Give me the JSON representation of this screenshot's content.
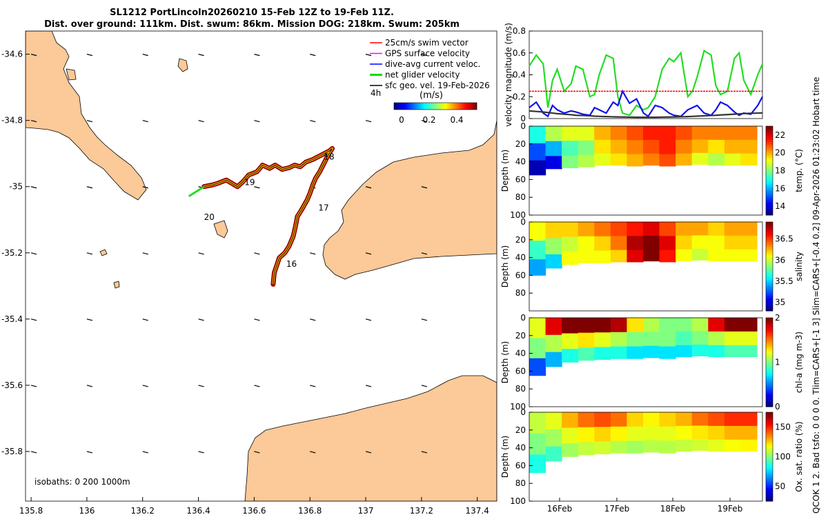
{
  "title": {
    "line1": "SL1212 PortLincoln20260210 15-Feb 12Z to 19-Feb 11Z.",
    "line2": "Dist. over ground: 111km. Dist. swum: 86km. Mission DOG: 218km. Swum: 205km"
  },
  "side_text": {
    "right1": "Hobart time",
    "right2": "09-Apr-2026 01:23:02",
    "right3": "Tlim=CARS+[-1 3] Slim=CARS+[-0.4 0.2]",
    "right4": "QCOK 1  2. Bad tsfo: 0  0  0  0.",
    "timestamp_full": "QCOK 1  2. Bad tsfo: 0  0  0  0. Tlim=CARS+[-1 3] Slim=CARS+[-0.4 0.2] 09-Apr-2026 01:23:02 Hobart time"
  },
  "map": {
    "x_ticks": [
      "135.8",
      "136",
      "136.2",
      "136.4",
      "136.6",
      "136.8",
      "137",
      "137.2",
      "137.4"
    ],
    "y_ticks": [
      "-34.6",
      "-34.8",
      "-35",
      "-35.2",
      "-35.4",
      "-35.6",
      "-35.8"
    ],
    "x_range": [
      135.78,
      137.47
    ],
    "y_range": [
      -35.95,
      -34.53
    ],
    "isobaths": "isobaths: 0   200  1000m",
    "day_labels": [
      {
        "text": "16",
        "lon": 136.715,
        "lat": -35.242
      },
      {
        "text": "17",
        "lon": 136.83,
        "lat": -35.072
      },
      {
        "text": "18",
        "lon": 136.85,
        "lat": -34.918
      },
      {
        "text": "19",
        "lon": 136.565,
        "lat": -34.995
      },
      {
        "text": "20",
        "lon": 136.42,
        "lat": -35.1
      }
    ],
    "track": [
      [
        136.668,
        -35.295
      ],
      [
        136.672,
        -35.26
      ],
      [
        136.69,
        -35.215
      ],
      [
        136.71,
        -35.2
      ],
      [
        136.725,
        -35.18
      ],
      [
        136.74,
        -35.15
      ],
      [
        136.748,
        -35.12
      ],
      [
        136.755,
        -35.09
      ],
      [
        136.77,
        -35.07
      ],
      [
        136.78,
        -35.055
      ],
      [
        136.79,
        -35.04
      ],
      [
        136.8,
        -35.02
      ],
      [
        136.81,
        -34.995
      ],
      [
        136.82,
        -34.975
      ],
      [
        136.835,
        -34.955
      ],
      [
        136.85,
        -34.93
      ],
      [
        136.865,
        -34.905
      ],
      [
        136.88,
        -34.885
      ],
      [
        136.87,
        -34.892
      ],
      [
        136.84,
        -34.905
      ],
      [
        136.81,
        -34.918
      ],
      [
        136.785,
        -34.926
      ],
      [
        136.765,
        -34.94
      ],
      [
        136.745,
        -34.935
      ],
      [
        136.725,
        -34.943
      ],
      [
        136.7,
        -34.948
      ],
      [
        136.675,
        -34.935
      ],
      [
        136.655,
        -34.945
      ],
      [
        136.63,
        -34.935
      ],
      [
        136.61,
        -34.955
      ],
      [
        136.58,
        -34.965
      ],
      [
        136.56,
        -34.985
      ],
      [
        136.54,
        -35.0
      ],
      [
        136.52,
        -34.99
      ],
      [
        136.5,
        -34.98
      ],
      [
        136.485,
        -34.985
      ],
      [
        136.47,
        -34.99
      ],
      [
        136.45,
        -34.995
      ],
      [
        136.42,
        -35.0
      ]
    ],
    "legend": {
      "items": [
        {
          "label": "25cm/s swim vector",
          "color": "#ff0000"
        },
        {
          "label": "GPS surface velocity",
          "color": "#ff00ff"
        },
        {
          "label": "dive-avg current veloc.",
          "color": "#0000ff"
        },
        {
          "label": "net glider velocity",
          "color": "#00dd00"
        },
        {
          "label": "sfc geo. vel. 19-Feb-2026",
          "color": "#000000"
        }
      ],
      "time_label": "4h",
      "colorbar_title": "(m/s)",
      "colorbar_ticks": [
        "0",
        "0.2",
        "0.4"
      ]
    }
  },
  "chart_data": [
    {
      "type": "line",
      "title": "",
      "ylabel": "velocity magnitude (m/s)",
      "ylim": [
        0,
        0.8
      ],
      "y_ticks": [
        "0",
        "0.2",
        "0.4",
        "0.6",
        "0.8"
      ],
      "x": [
        0,
        0.03,
        0.06,
        0.08,
        0.1,
        0.12,
        0.15,
        0.18,
        0.2,
        0.23,
        0.26,
        0.28,
        0.3,
        0.33,
        0.36,
        0.38,
        0.4,
        0.43,
        0.46,
        0.49,
        0.51,
        0.54,
        0.57,
        0.6,
        0.62,
        0.65,
        0.68,
        0.7,
        0.72,
        0.75,
        0.78,
        0.8,
        0.82,
        0.85,
        0.88,
        0.9,
        0.92,
        0.95,
        0.98,
        1.0
      ],
      "series": [
        {
          "name": "net glider velocity",
          "color": "#22dd22",
          "values": [
            0.48,
            0.58,
            0.5,
            0.1,
            0.35,
            0.45,
            0.25,
            0.32,
            0.48,
            0.45,
            0.2,
            0.22,
            0.4,
            0.58,
            0.55,
            0.2,
            0.05,
            0.03,
            0.12,
            0.08,
            0.1,
            0.2,
            0.45,
            0.55,
            0.52,
            0.6,
            0.2,
            0.25,
            0.38,
            0.62,
            0.58,
            0.3,
            0.22,
            0.25,
            0.55,
            0.6,
            0.35,
            0.22,
            0.4,
            0.5
          ]
        },
        {
          "name": "dive-avg current veloc.",
          "color": "#1111ee",
          "values": [
            0.1,
            0.15,
            0.05,
            0.02,
            0.12,
            0.08,
            0.05,
            0.07,
            0.06,
            0.04,
            0.03,
            0.1,
            0.08,
            0.05,
            0.15,
            0.12,
            0.25,
            0.14,
            0.18,
            0.05,
            0.02,
            0.12,
            0.1,
            0.05,
            0.03,
            0.02,
            0.08,
            0.1,
            0.12,
            0.05,
            0.03,
            0.08,
            0.15,
            0.12,
            0.06,
            0.03,
            0.05,
            0.04,
            0.12,
            0.2
          ]
        },
        {
          "name": "sfc geo. vel.",
          "color": "#333333",
          "values": [
            0.07,
            0.065,
            0.06,
            0.055,
            0.05,
            0.045,
            0.04,
            0.035,
            0.03,
            0.028,
            0.025,
            0.022,
            0.02,
            0.018,
            0.016,
            0.015,
            0.014,
            0.013,
            0.012,
            0.012,
            0.012,
            0.012,
            0.013,
            0.014,
            0.015,
            0.016,
            0.018,
            0.02,
            0.022,
            0.025,
            0.028,
            0.03,
            0.033,
            0.036,
            0.04,
            0.043,
            0.046,
            0.048,
            0.05,
            0.052
          ]
        },
        {
          "name": "25cm/s swim vector",
          "color": "#ff0000",
          "values": [
            0.25,
            0.25,
            0.25,
            0.25,
            0.25,
            0.25,
            0.25,
            0.25,
            0.25,
            0.25,
            0.25,
            0.25,
            0.25,
            0.25,
            0.25,
            0.25,
            0.25,
            0.25,
            0.25,
            0.25,
            0.25,
            0.25,
            0.25,
            0.25,
            0.25,
            0.25,
            0.25,
            0.25,
            0.25,
            0.25,
            0.25,
            0.25,
            0.25,
            0.25,
            0.25,
            0.25,
            0.25,
            0.25,
            0.25,
            0.25
          ]
        }
      ]
    },
    {
      "type": "heatmap",
      "variable": "temp",
      "ylabel": "Depth (m)",
      "cbar_label": "temp. (°C)",
      "ylim": [
        100,
        0
      ],
      "y_ticks": [
        "0",
        "20",
        "40",
        "60",
        "80",
        "100"
      ],
      "cbar_range": [
        13,
        23
      ],
      "cbar_ticks": [
        "14",
        "16",
        "18",
        "20",
        "22"
      ],
      "columns": [
        {
          "v": [
            17,
            15,
            13.5
          ],
          "d": 55
        },
        {
          "v": [
            18.5,
            16,
            14
          ],
          "d": 48
        },
        {
          "v": [
            19,
            17.5,
            18
          ],
          "d": 47
        },
        {
          "v": [
            19,
            18,
            18.5
          ],
          "d": 46
        },
        {
          "v": [
            20,
            19.5,
            19
          ],
          "d": 44
        },
        {
          "v": [
            20.5,
            20,
            19.5
          ],
          "d": 44
        },
        {
          "v": [
            21,
            20.5,
            20
          ],
          "d": 45
        },
        {
          "v": [
            21.5,
            21,
            20.5
          ],
          "d": 44
        },
        {
          "v": [
            21.5,
            21.5,
            21
          ],
          "d": 45
        },
        {
          "v": [
            21,
            20.5,
            20
          ],
          "d": 44
        },
        {
          "v": [
            20.5,
            20,
            19
          ],
          "d": 43
        },
        {
          "v": [
            20.5,
            19.5,
            18.5
          ],
          "d": 44
        },
        {
          "v": [
            20.5,
            20,
            19
          ],
          "d": 44
        },
        {
          "v": [
            20.5,
            20,
            19.5
          ],
          "d": 44
        }
      ]
    },
    {
      "type": "heatmap",
      "variable": "salinity",
      "ylabel": "Depth (m)",
      "cbar_label": "salinity",
      "ylim": [
        100,
        0
      ],
      "y_ticks": [
        "0",
        "20",
        "40",
        "60",
        "80"
      ],
      "cbar_range": [
        34.8,
        36.9
      ],
      "cbar_ticks": [
        "35",
        "35.5",
        "36",
        "36.5"
      ],
      "columns": [
        {
          "v": [
            36.1,
            35.7,
            35.4
          ],
          "d": 60
        },
        {
          "v": [
            36.2,
            35.9,
            35.5
          ],
          "d": 52
        },
        {
          "v": [
            36.2,
            36.0,
            36.1
          ],
          "d": 48
        },
        {
          "v": [
            36.3,
            36.1,
            36.1
          ],
          "d": 46
        },
        {
          "v": [
            36.4,
            36.2,
            36.1
          ],
          "d": 46
        },
        {
          "v": [
            36.5,
            36.4,
            36.2
          ],
          "d": 45
        },
        {
          "v": [
            36.6,
            36.8,
            36.7
          ],
          "d": 45
        },
        {
          "v": [
            36.7,
            36.9,
            36.9
          ],
          "d": 44
        },
        {
          "v": [
            36.5,
            36.7,
            36.6
          ],
          "d": 45
        },
        {
          "v": [
            36.3,
            36.2,
            36.1
          ],
          "d": 44
        },
        {
          "v": [
            36.3,
            36.1,
            36.0
          ],
          "d": 43
        },
        {
          "v": [
            36.2,
            36.1,
            36.1
          ],
          "d": 44
        },
        {
          "v": [
            36.3,
            36.2,
            36.1
          ],
          "d": 44
        },
        {
          "v": [
            36.3,
            36.2,
            36.1
          ],
          "d": 44
        }
      ]
    },
    {
      "type": "heatmap",
      "variable": "chl-a",
      "ylabel": "Depth (m)",
      "cbar_label": "chl-a (mg m-3)",
      "ylim": [
        100,
        0
      ],
      "y_ticks": [
        "0",
        "20",
        "40",
        "60",
        "80",
        "100"
      ],
      "cbar_range": [
        0,
        2
      ],
      "cbar_ticks": [
        "0",
        "1",
        "2"
      ],
      "columns": [
        {
          "v": [
            1.2,
            1.0,
            0.4
          ],
          "d": 65
        },
        {
          "v": [
            1.8,
            1.1,
            0.6
          ],
          "d": 55
        },
        {
          "v": [
            2.0,
            1.2,
            0.8
          ],
          "d": 50
        },
        {
          "v": [
            2.0,
            1.3,
            0.9
          ],
          "d": 48
        },
        {
          "v": [
            2.0,
            1.2,
            0.8
          ],
          "d": 47
        },
        {
          "v": [
            1.9,
            1.1,
            0.8
          ],
          "d": 46
        },
        {
          "v": [
            1.3,
            1.0,
            0.7
          ],
          "d": 46
        },
        {
          "v": [
            1.1,
            1.0,
            0.7
          ],
          "d": 45
        },
        {
          "v": [
            1.0,
            1.0,
            0.7
          ],
          "d": 46
        },
        {
          "v": [
            1.0,
            0.9,
            0.7
          ],
          "d": 44
        },
        {
          "v": [
            1.1,
            1.0,
            0.8
          ],
          "d": 43
        },
        {
          "v": [
            1.8,
            1.1,
            0.8
          ],
          "d": 44
        },
        {
          "v": [
            2.0,
            1.2,
            0.9
          ],
          "d": 44
        },
        {
          "v": [
            2.0,
            1.2,
            0.9
          ],
          "d": 44
        }
      ]
    },
    {
      "type": "heatmap",
      "variable": "oxygen",
      "ylabel": "Depth (m)",
      "cbar_label": "Ox. sat. ratio (%)",
      "ylim": [
        100,
        0
      ],
      "y_ticks": [
        "0",
        "20",
        "40",
        "60",
        "80",
        "100"
      ],
      "cbar_range": [
        25,
        175
      ],
      "cbar_ticks": [
        "50",
        "100",
        "150"
      ],
      "columns": [
        {
          "v": [
            110,
            100,
            85
          ],
          "d": 68
        },
        {
          "v": [
            115,
            105,
            90
          ],
          "d": 55
        },
        {
          "v": [
            130,
            115,
            105
          ],
          "d": 50
        },
        {
          "v": [
            140,
            120,
            110
          ],
          "d": 48
        },
        {
          "v": [
            145,
            125,
            112
          ],
          "d": 47
        },
        {
          "v": [
            140,
            120,
            108
          ],
          "d": 46
        },
        {
          "v": [
            125,
            115,
            105
          ],
          "d": 46
        },
        {
          "v": [
            120,
            115,
            108
          ],
          "d": 45
        },
        {
          "v": [
            125,
            115,
            108
          ],
          "d": 46
        },
        {
          "v": [
            130,
            118,
            110
          ],
          "d": 44
        },
        {
          "v": [
            140,
            122,
            112
          ],
          "d": 43
        },
        {
          "v": [
            145,
            125,
            115
          ],
          "d": 44
        },
        {
          "v": [
            150,
            130,
            118
          ],
          "d": 44
        },
        {
          "v": [
            150,
            130,
            120
          ],
          "d": 44
        }
      ]
    }
  ],
  "time_axis": {
    "ticks": [
      "16Feb",
      "17Feb",
      "18Feb",
      "19Feb"
    ]
  },
  "colors": {
    "land": "#fcc998",
    "track_outer": "#a00000"
  }
}
